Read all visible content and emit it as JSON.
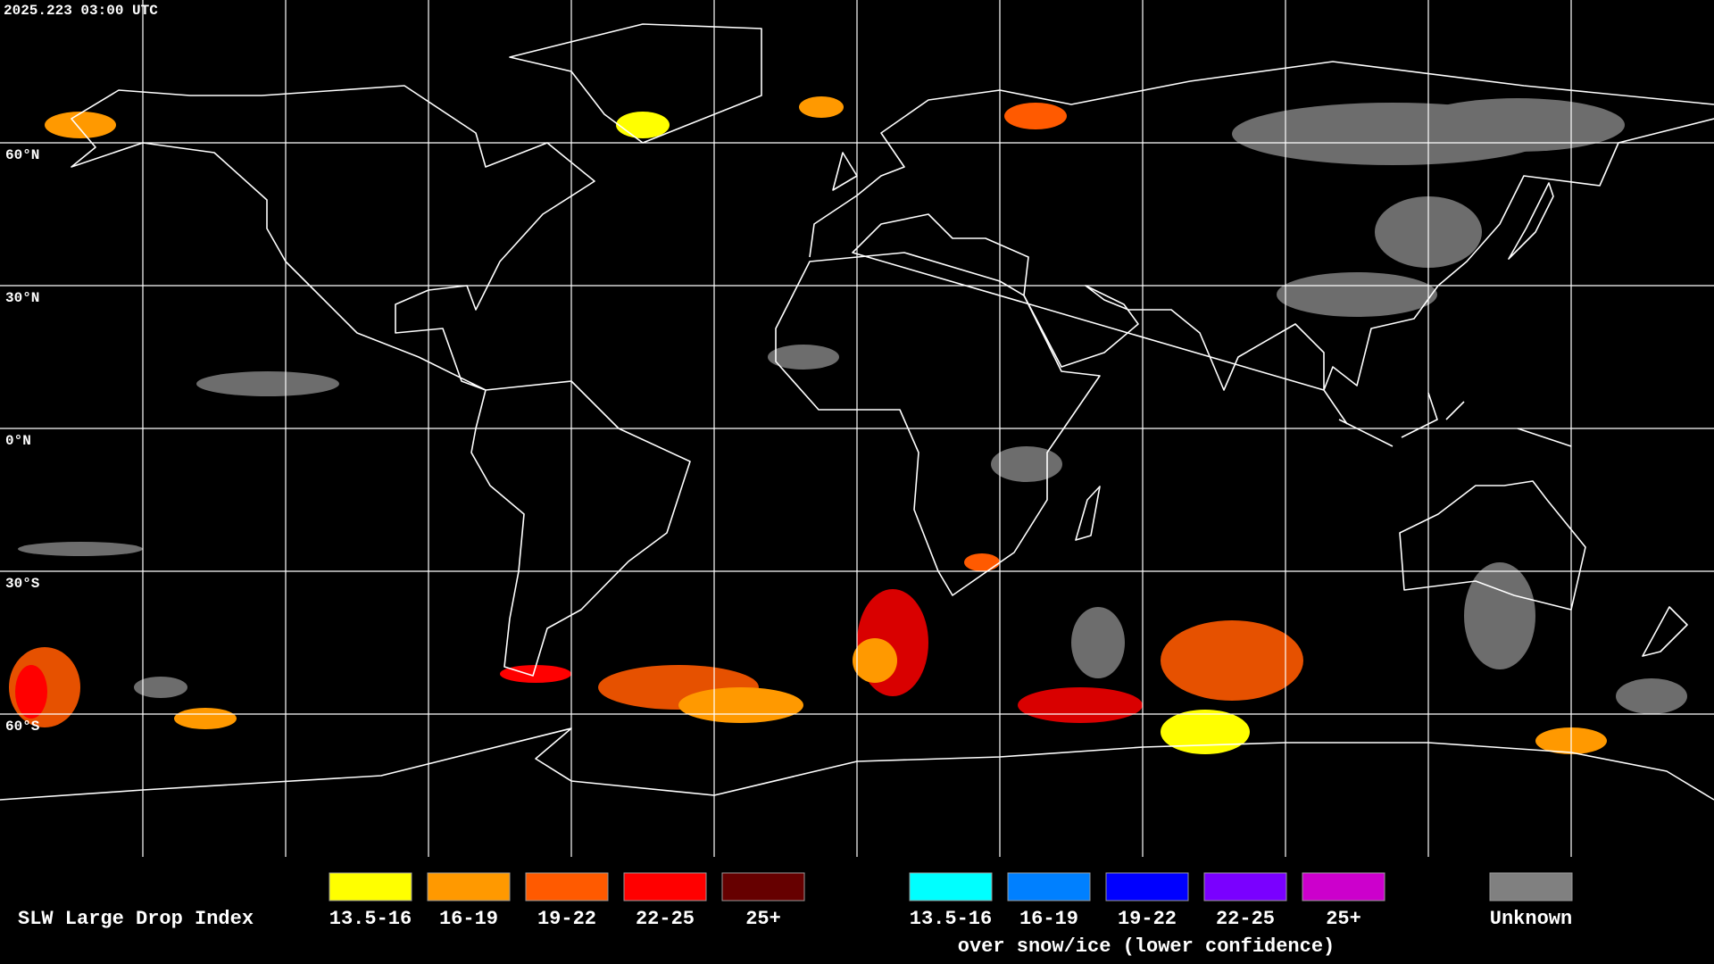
{
  "header": {
    "timestamp": "2025.223 03:00 UTC"
  },
  "map": {
    "latitude_labels": [
      "60°N",
      "30°N",
      "0°N",
      "30°S",
      "60°S"
    ]
  },
  "legend": {
    "title": "SLW Large Drop Index",
    "classes": [
      {
        "label": "13.5-16",
        "color": "#ffff00"
      },
      {
        "label": "16-19",
        "color": "#ff9900"
      },
      {
        "label": "19-22",
        "color": "#ff5a00"
      },
      {
        "label": "22-25",
        "color": "#ff0000"
      },
      {
        "label": "25+",
        "color": "#660000"
      }
    ],
    "snow_classes": [
      {
        "label": "13.5-16",
        "color": "#00ffff"
      },
      {
        "label": "16-19",
        "color": "#0080ff"
      },
      {
        "label": "19-22",
        "color": "#0000ff"
      },
      {
        "label": "22-25",
        "color": "#7a00ff"
      },
      {
        "label": "25+",
        "color": "#cc00cc"
      }
    ],
    "snow_note": "over snow/ice (lower confidence)",
    "unknown": {
      "label": "Unknown",
      "color": "#808080"
    }
  }
}
